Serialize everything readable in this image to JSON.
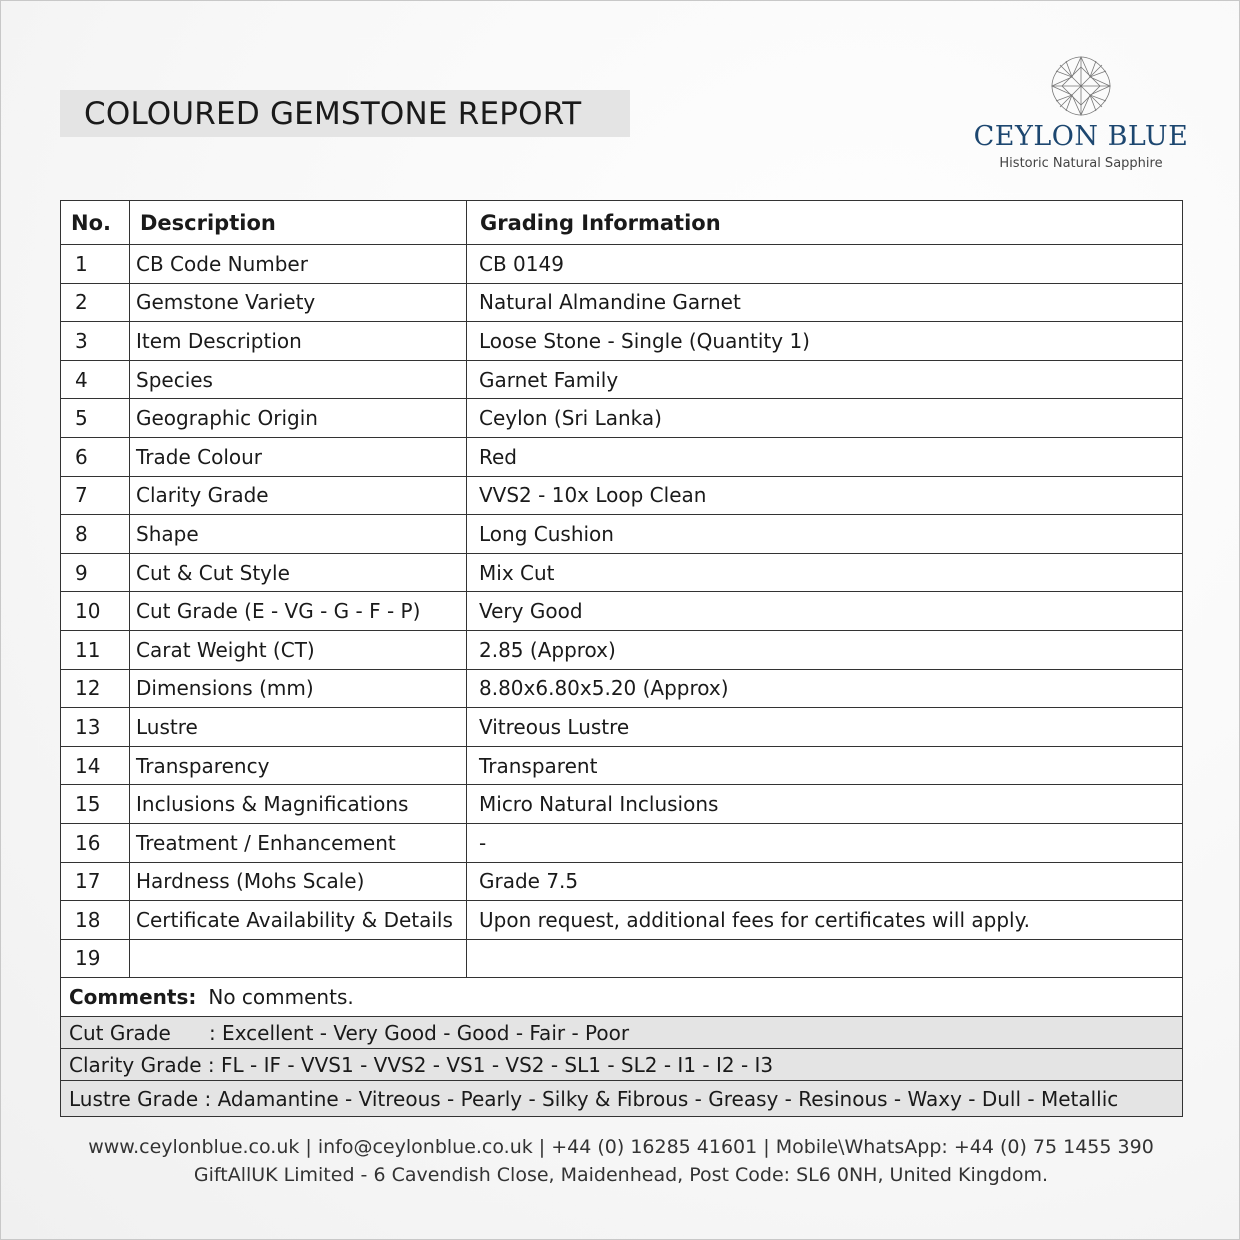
{
  "header": {
    "title": "COLOURED GEMSTONE REPORT"
  },
  "logo": {
    "brand": "CEYLON BLUE",
    "tagline": "Historic Natural Sapphire",
    "icon": "cushion-gem-icon",
    "color": "#1d4770"
  },
  "table": {
    "headers": [
      "No.",
      "Description",
      "Grading Information"
    ],
    "rows": [
      {
        "no": "1",
        "desc": "CB Code Number",
        "value": "CB 0149"
      },
      {
        "no": "2",
        "desc": "Gemstone Variety",
        "value": "Natural Almandine Garnet"
      },
      {
        "no": "3",
        "desc": "Item Description",
        "value": "Loose Stone - Single (Quantity 1)"
      },
      {
        "no": "4",
        "desc": "Species",
        "value": "Garnet Family"
      },
      {
        "no": "5",
        "desc": "Geographic Origin",
        "value": "Ceylon (Sri Lanka)"
      },
      {
        "no": "6",
        "desc": "Trade Colour",
        "value": "Red"
      },
      {
        "no": "7",
        "desc": "Clarity Grade",
        "value": "VVS2 - 10x Loop Clean"
      },
      {
        "no": "8",
        "desc": "Shape",
        "value": "Long Cushion"
      },
      {
        "no": "9",
        "desc": "Cut & Cut Style",
        "value": "Mix Cut"
      },
      {
        "no": "10",
        "desc": "Cut Grade (E - VG - G - F - P)",
        "value": "Very Good"
      },
      {
        "no": "11",
        "desc": "Carat Weight (CT)",
        "value": "2.85 (Approx)"
      },
      {
        "no": "12",
        "desc": "Dimensions (mm)",
        "value": "8.80x6.80x5.20 (Approx)"
      },
      {
        "no": "13",
        "desc": "Lustre",
        "value": "Vitreous Lustre"
      },
      {
        "no": "14",
        "desc": "Transparency",
        "value": "Transparent"
      },
      {
        "no": "15",
        "desc": "Inclusions & Magnifications",
        "value": "Micro Natural Inclusions"
      },
      {
        "no": "16",
        "desc": "Treatment / Enhancement",
        "value": "-"
      },
      {
        "no": "17",
        "desc": "Hardness (Mohs Scale)",
        "value": "Grade 7.5"
      },
      {
        "no": "18",
        "desc": "Certificate Availability & Details",
        "value": "Upon request, additional fees for certificates will apply."
      },
      {
        "no": "19",
        "desc": "",
        "value": ""
      }
    ],
    "comments_label": "Comments:",
    "comments": "No comments.",
    "grades": [
      "Cut Grade      : Excellent - Very Good - Good - Fair - Poor",
      "Clarity Grade : FL - IF - VVS1 - VVS2 - VS1 - VS2 - SL1 - SL2 - I1 - I2 - I3",
      "Lustre Grade : Adamantine - Vitreous - Pearly - Silky & Fibrous - Greasy - Resinous - Waxy - Dull - Metallic"
    ]
  },
  "footer": {
    "line1": "www.ceylonblue.co.uk | info@ceylonblue.co.uk | +44 (0) 16285 41601 | Mobile\\WhatsApp: +44 (0) 75 1455 390",
    "line2": "GiftAllUK Limited - 6 Cavendish Close, Maidenhead, Post Code: SL6 0NH, United Kingdom."
  }
}
